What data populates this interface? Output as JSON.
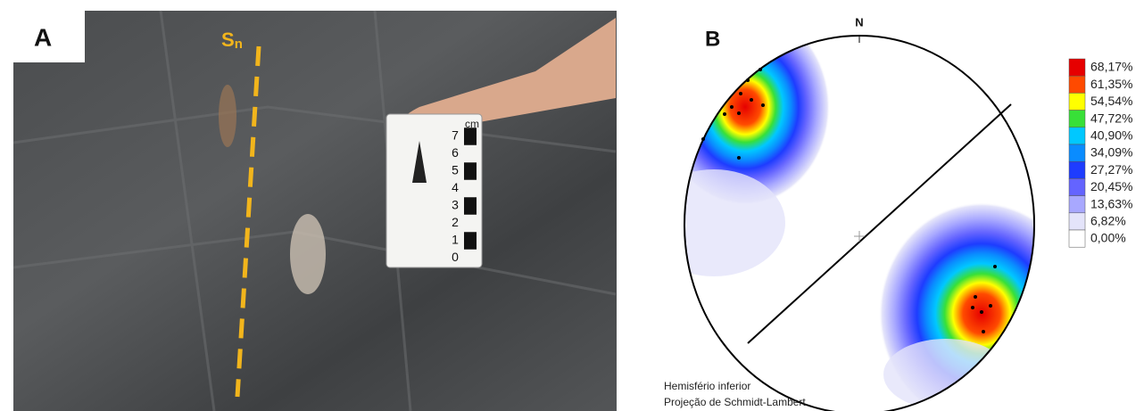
{
  "panel_a": {
    "label": "A",
    "foliation_label": "S",
    "foliation_subscript": "n",
    "scale_unit": "cm",
    "scale_numbers": [
      "7",
      "6",
      "5",
      "4",
      "3",
      "2",
      "1",
      "0"
    ]
  },
  "panel_b": {
    "label": "B",
    "north": "N",
    "legend": [
      {
        "label": "68,17%",
        "color": "#e60000"
      },
      {
        "label": "61,35%",
        "color": "#ff4a00"
      },
      {
        "label": "54,54%",
        "color": "#ffff00"
      },
      {
        "label": "47,72%",
        "color": "#38e038"
      },
      {
        "label": "40,90%",
        "color": "#00c8ff"
      },
      {
        "label": "34,09%",
        "color": "#0a8cff"
      },
      {
        "label": "27,27%",
        "color": "#1e3cff"
      },
      {
        "label": "20,45%",
        "color": "#6464ff"
      },
      {
        "label": "13,63%",
        "color": "#a8a8ff"
      },
      {
        "label": "6,82%",
        "color": "#e4e4fa"
      },
      {
        "label": "0,00%",
        "color": "#ffffff"
      }
    ],
    "footer_lines": [
      "Hemisfério inferior",
      "Projeção de Schmidt-Lambert"
    ]
  }
}
